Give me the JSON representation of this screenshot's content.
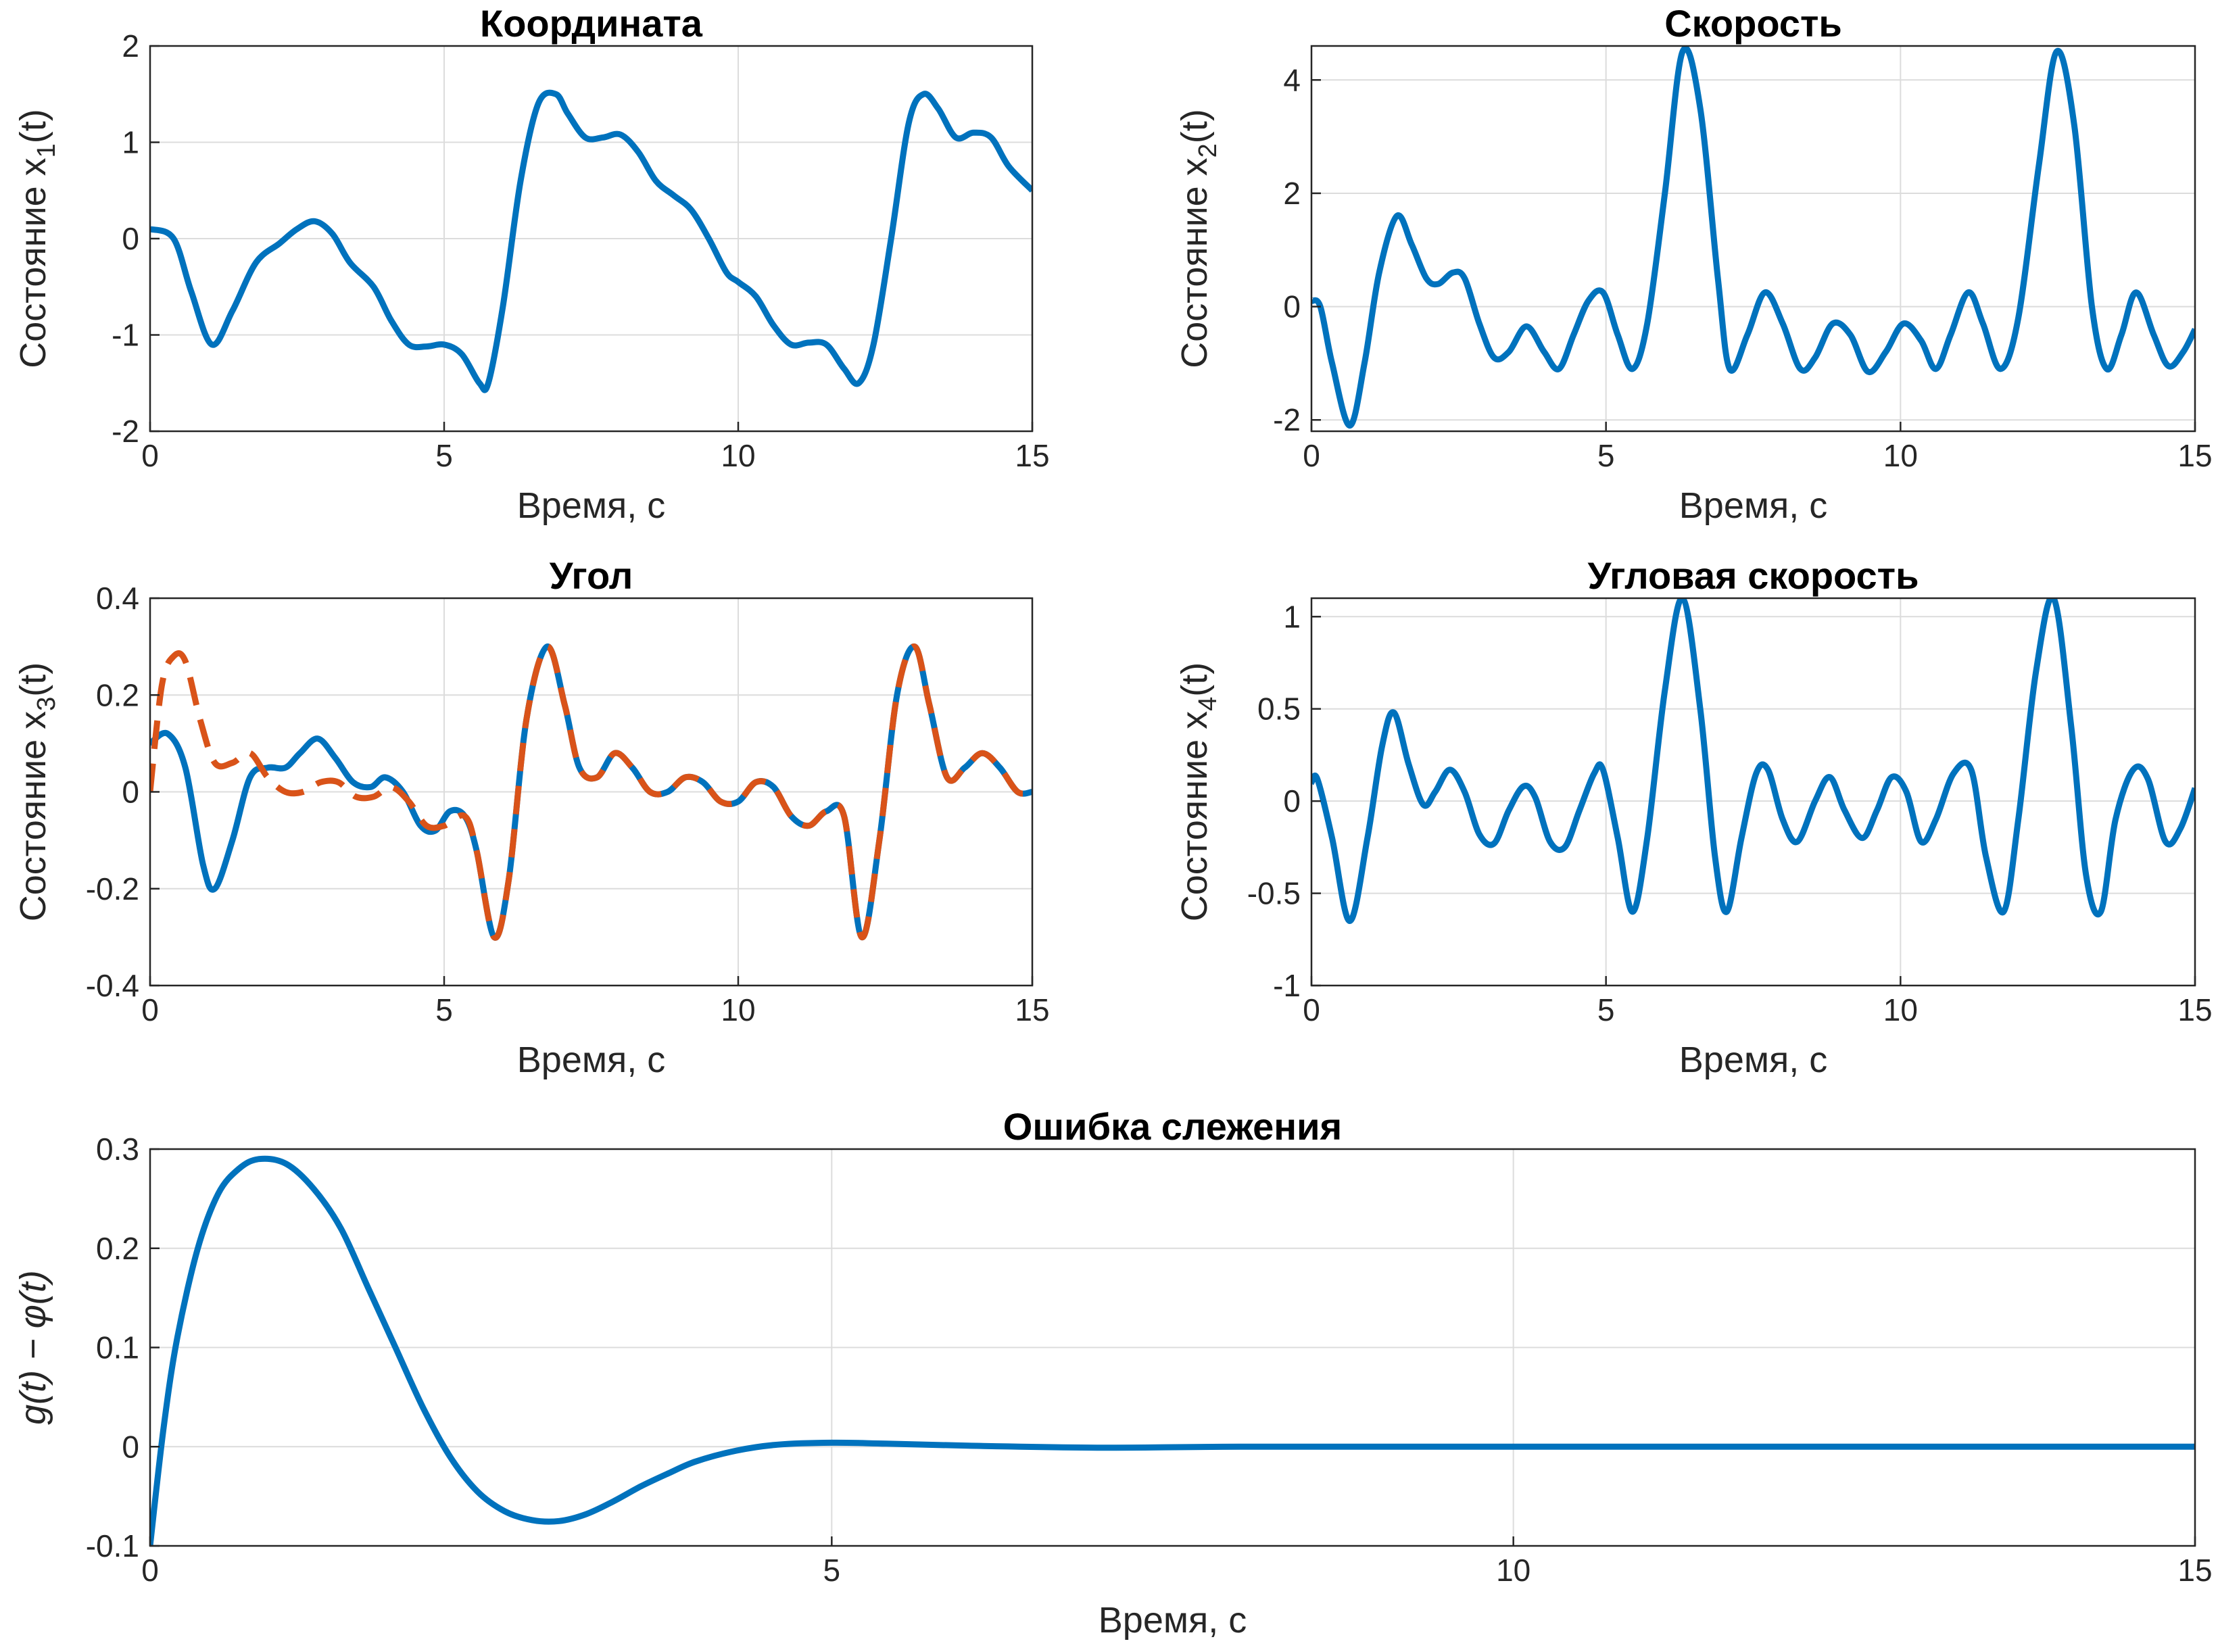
{
  "figure": {
    "colors": {
      "primary": "#0072BD",
      "secondary": "#D95319",
      "axis": "#262626",
      "grid": "#dcdcdc"
    }
  },
  "chart_data": [
    {
      "id": "coord",
      "type": "line",
      "title": "Координата",
      "xlabel": "Время, с",
      "ylabel_prefix": "Состояние x",
      "ylabel_sub": "1",
      "ylabel_suffix": "(t)",
      "xlim": [
        0,
        15
      ],
      "ylim": [
        -2,
        2
      ],
      "xticks": [
        0,
        5,
        10,
        15
      ],
      "yticks": [
        -2,
        -1,
        0,
        1,
        2
      ],
      "grid": true,
      "series": [
        {
          "style": "solid",
          "color": "#0072BD",
          "x": [
            0,
            0.4,
            0.7,
            1.05,
            1.4,
            1.8,
            2.2,
            2.5,
            2.8,
            3.1,
            3.4,
            3.8,
            4.1,
            4.4,
            4.7,
            5.0,
            5.3,
            5.6,
            5.75,
            6.0,
            6.3,
            6.6,
            6.9,
            7.1,
            7.4,
            7.7,
            8.0,
            8.3,
            8.6,
            8.9,
            9.2,
            9.5,
            9.8,
            10.0,
            10.3,
            10.6,
            10.9,
            11.2,
            11.5,
            11.8,
            12.05,
            12.3,
            12.6,
            12.9,
            13.15,
            13.4,
            13.7,
            14.0,
            14.3,
            14.6,
            15.0
          ],
          "y": [
            0.1,
            0.0,
            -0.55,
            -1.1,
            -0.75,
            -0.25,
            -0.05,
            0.1,
            0.18,
            0.05,
            -0.25,
            -0.5,
            -0.85,
            -1.1,
            -1.12,
            -1.1,
            -1.2,
            -1.5,
            -1.5,
            -0.7,
            0.6,
            1.4,
            1.5,
            1.3,
            1.05,
            1.05,
            1.08,
            0.9,
            0.6,
            0.45,
            0.3,
            0.0,
            -0.35,
            -0.45,
            -0.6,
            -0.9,
            -1.1,
            -1.08,
            -1.1,
            -1.35,
            -1.5,
            -1.1,
            0.0,
            1.2,
            1.5,
            1.35,
            1.05,
            1.1,
            1.05,
            0.75,
            0.5
          ]
        }
      ]
    },
    {
      "id": "speed",
      "type": "line",
      "title": "Скорость",
      "xlabel": "Время, с",
      "ylabel_prefix": "Состояние x",
      "ylabel_sub": "2",
      "ylabel_suffix": "(t)",
      "xlim": [
        0,
        15
      ],
      "ylim": [
        -2.2,
        4.6
      ],
      "xticks": [
        0,
        5,
        10,
        15
      ],
      "yticks": [
        -2,
        0,
        2,
        4
      ],
      "grid": true,
      "series": [
        {
          "style": "solid",
          "color": "#0072BD",
          "x": [
            0,
            0.15,
            0.35,
            0.65,
            0.9,
            1.15,
            1.45,
            1.7,
            1.95,
            2.15,
            2.4,
            2.6,
            2.85,
            3.1,
            3.35,
            3.65,
            3.95,
            4.2,
            4.45,
            4.7,
            4.95,
            5.2,
            5.45,
            5.7,
            6.0,
            6.3,
            6.6,
            6.9,
            7.1,
            7.4,
            7.7,
            8.0,
            8.3,
            8.55,
            8.85,
            9.15,
            9.45,
            9.75,
            10.05,
            10.35,
            10.6,
            10.85,
            11.15,
            11.4,
            11.7,
            12.0,
            12.35,
            12.65,
            12.95,
            13.25,
            13.5,
            13.75,
            14.0,
            14.3,
            14.55,
            14.8,
            15.0
          ],
          "y": [
            0.1,
            0.0,
            -1.0,
            -2.1,
            -1.0,
            0.6,
            1.6,
            1.1,
            0.5,
            0.4,
            0.6,
            0.5,
            -0.3,
            -0.9,
            -0.8,
            -0.35,
            -0.8,
            -1.1,
            -0.5,
            0.1,
            0.25,
            -0.5,
            -1.1,
            -0.3,
            2.0,
            4.5,
            3.5,
            0.5,
            -1.1,
            -0.5,
            0.25,
            -0.3,
            -1.1,
            -0.9,
            -0.3,
            -0.5,
            -1.15,
            -0.8,
            -0.3,
            -0.6,
            -1.1,
            -0.5,
            0.25,
            -0.3,
            -1.1,
            -0.2,
            2.5,
            4.5,
            3.2,
            0.0,
            -1.1,
            -0.5,
            0.25,
            -0.5,
            -1.05,
            -0.8,
            -0.4
          ]
        }
      ]
    },
    {
      "id": "angle",
      "type": "line",
      "title": "Угол",
      "xlabel": "Время, с",
      "ylabel_prefix": "Состояние x",
      "ylabel_sub": "3",
      "ylabel_suffix": "(t)",
      "xlim": [
        0,
        15
      ],
      "ylim": [
        -0.4,
        0.4
      ],
      "xticks": [
        0,
        5,
        10,
        15
      ],
      "yticks": [
        -0.4,
        -0.2,
        0,
        0.2,
        0.4
      ],
      "grid": true,
      "series": [
        {
          "style": "solid",
          "color": "#0072BD",
          "x": [
            0,
            0.3,
            0.6,
            0.9,
            1.1,
            1.4,
            1.7,
            2.0,
            2.3,
            2.55,
            2.85,
            3.15,
            3.45,
            3.75,
            4.0,
            4.3,
            4.6,
            4.85,
            5.1,
            5.35,
            5.55,
            5.85,
            6.1,
            6.4,
            6.75,
            7.05,
            7.3,
            7.6,
            7.9,
            8.2,
            8.5,
            8.8,
            9.1,
            9.4,
            9.7,
            10.0,
            10.3,
            10.6,
            10.9,
            11.2,
            11.5,
            11.8,
            12.1,
            12.4,
            12.7,
            13.0,
            13.25,
            13.55,
            13.85,
            14.15,
            14.45,
            14.75,
            15.0
          ],
          "y": [
            0.1,
            0.12,
            0.05,
            -0.15,
            -0.2,
            -0.1,
            0.03,
            0.05,
            0.05,
            0.08,
            0.11,
            0.07,
            0.02,
            0.01,
            0.03,
            0.0,
            -0.07,
            -0.08,
            -0.04,
            -0.05,
            -0.12,
            -0.3,
            -0.18,
            0.15,
            0.3,
            0.18,
            0.05,
            0.03,
            0.08,
            0.05,
            0.0,
            0.0,
            0.03,
            0.02,
            -0.02,
            -0.02,
            0.02,
            0.01,
            -0.05,
            -0.07,
            -0.04,
            -0.05,
            -0.3,
            -0.1,
            0.2,
            0.3,
            0.18,
            0.03,
            0.05,
            0.08,
            0.05,
            0.0,
            0.0
          ]
        },
        {
          "style": "dashed",
          "color": "#D95319",
          "x": [
            0,
            0.2,
            0.4,
            0.6,
            0.85,
            1.1,
            1.4,
            1.7,
            2.0,
            2.3,
            2.6,
            2.9,
            3.2,
            3.5,
            3.8,
            4.1,
            4.4,
            4.7,
            5.0,
            5.35,
            5.55,
            5.85,
            6.1,
            6.4,
            6.75,
            7.05,
            7.3,
            7.6,
            7.9,
            8.2,
            8.5,
            8.8,
            9.1,
            9.4,
            9.7,
            10.0,
            10.3,
            10.6,
            10.9,
            11.2,
            11.5,
            11.8,
            12.1,
            12.4,
            12.7,
            13.0,
            13.25,
            13.55,
            13.85,
            14.15,
            14.45,
            14.75,
            15.0
          ],
          "y": [
            0.0,
            0.22,
            0.28,
            0.27,
            0.15,
            0.06,
            0.06,
            0.08,
            0.03,
            0.0,
            0.0,
            0.02,
            0.02,
            -0.01,
            -0.01,
            0.01,
            -0.02,
            -0.07,
            -0.07,
            -0.05,
            -0.12,
            -0.3,
            -0.18,
            0.15,
            0.3,
            0.18,
            0.05,
            0.03,
            0.08,
            0.05,
            0.0,
            0.0,
            0.03,
            0.02,
            -0.02,
            -0.02,
            0.02,
            0.01,
            -0.05,
            -0.07,
            -0.04,
            -0.05,
            -0.3,
            -0.1,
            0.2,
            0.3,
            0.18,
            0.03,
            0.05,
            0.08,
            0.05,
            0.0,
            0.0
          ]
        }
      ]
    },
    {
      "id": "angspeed",
      "type": "line",
      "title": "Угловая скорость",
      "xlabel": "Время, с",
      "ylabel_prefix": "Состояние x",
      "ylabel_sub": "4",
      "ylabel_suffix": "(t)",
      "xlim": [
        0,
        15
      ],
      "ylim": [
        -1,
        1.1
      ],
      "xticks": [
        0,
        5,
        10,
        15
      ],
      "yticks": [
        -1,
        -0.5,
        0,
        0.5,
        1
      ],
      "grid": true,
      "series": [
        {
          "style": "solid",
          "color": "#0072BD",
          "x": [
            0,
            0.1,
            0.35,
            0.65,
            0.95,
            1.2,
            1.4,
            1.65,
            1.9,
            2.1,
            2.35,
            2.6,
            2.85,
            3.1,
            3.35,
            3.6,
            3.8,
            4.05,
            4.3,
            4.55,
            4.8,
            4.95,
            5.2,
            5.45,
            5.7,
            6.0,
            6.3,
            6.6,
            6.85,
            7.05,
            7.3,
            7.55,
            7.75,
            8.0,
            8.25,
            8.55,
            8.8,
            9.05,
            9.35,
            9.6,
            9.85,
            10.1,
            10.35,
            10.6,
            10.9,
            11.2,
            11.45,
            11.75,
            12.0,
            12.3,
            12.6,
            12.9,
            13.15,
            13.4,
            13.65,
            13.95,
            14.2,
            14.5,
            14.75,
            15.0
          ],
          "y": [
            0.1,
            0.12,
            -0.2,
            -0.65,
            -0.2,
            0.3,
            0.48,
            0.2,
            -0.02,
            0.05,
            0.17,
            0.05,
            -0.18,
            -0.23,
            -0.05,
            0.08,
            0.02,
            -0.22,
            -0.25,
            -0.05,
            0.15,
            0.17,
            -0.2,
            -0.6,
            -0.2,
            0.6,
            1.1,
            0.5,
            -0.3,
            -0.6,
            -0.2,
            0.15,
            0.17,
            -0.1,
            -0.22,
            0.0,
            0.13,
            -0.05,
            -0.2,
            -0.05,
            0.13,
            0.05,
            -0.22,
            -0.1,
            0.15,
            0.17,
            -0.3,
            -0.6,
            -0.1,
            0.7,
            1.1,
            0.4,
            -0.4,
            -0.6,
            -0.1,
            0.17,
            0.12,
            -0.22,
            -0.15,
            0.07
          ]
        }
      ]
    },
    {
      "id": "error",
      "type": "line",
      "title": "Ошибка слежения",
      "xlabel": "Время, с",
      "ylabel_math": "g(t) − φ(t)",
      "xlim": [
        0,
        15
      ],
      "ylim": [
        -0.1,
        0.3
      ],
      "xticks": [
        0,
        5,
        10,
        15
      ],
      "yticks": [
        -0.1,
        0,
        0.1,
        0.2,
        0.3
      ],
      "grid": true,
      "series": [
        {
          "style": "solid",
          "color": "#0072BD",
          "x": [
            0,
            0.1,
            0.2,
            0.35,
            0.5,
            0.65,
            0.8,
            1.0,
            1.2,
            1.4,
            1.6,
            1.8,
            2.0,
            2.2,
            2.4,
            2.6,
            2.8,
            3.0,
            3.2,
            3.4,
            3.6,
            3.8,
            4.0,
            4.3,
            4.6,
            5.0,
            5.4,
            6.0,
            7.0,
            8.0,
            10.0,
            12.0,
            15.0
          ],
          "y": [
            -0.1,
            0.02,
            0.11,
            0.2,
            0.255,
            0.28,
            0.29,
            0.285,
            0.26,
            0.22,
            0.16,
            0.1,
            0.04,
            -0.01,
            -0.045,
            -0.065,
            -0.074,
            -0.075,
            -0.068,
            -0.055,
            -0.04,
            -0.027,
            -0.015,
            -0.004,
            0.002,
            0.004,
            0.003,
            0.001,
            -0.001,
            0.0,
            0.0,
            0.0,
            0.0
          ]
        }
      ]
    }
  ]
}
